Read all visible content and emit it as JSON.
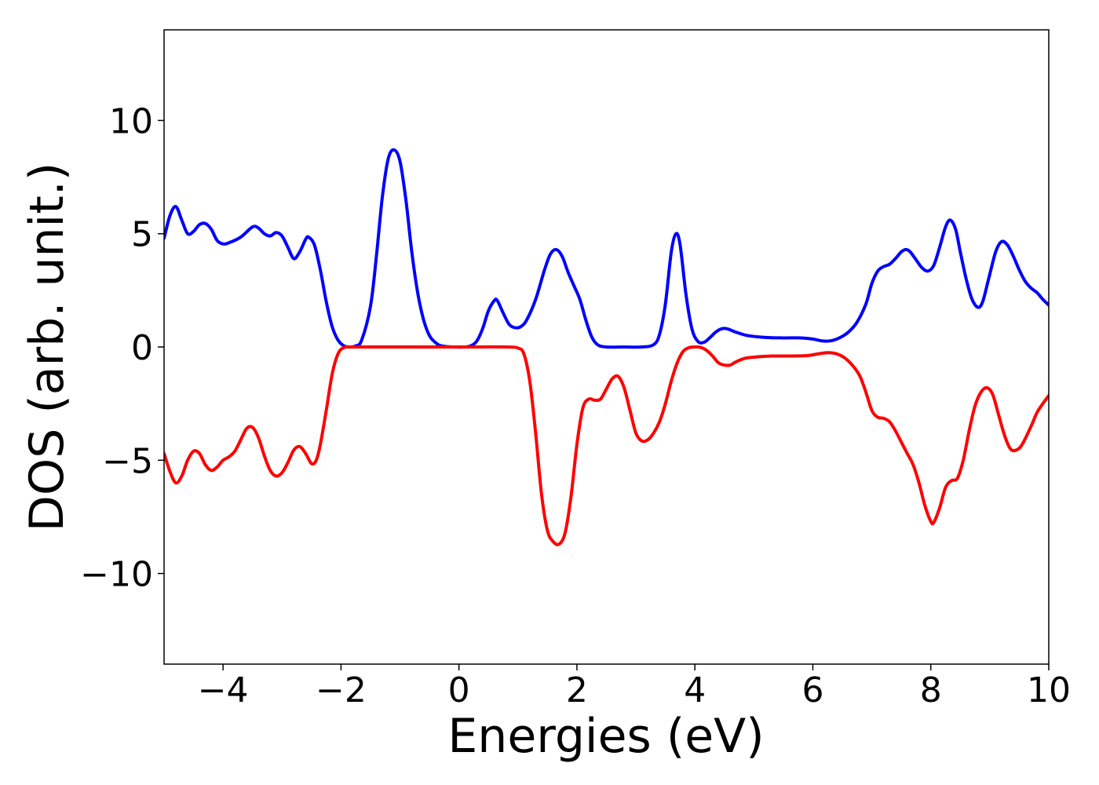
{
  "chart_data": {
    "type": "line",
    "title": "",
    "xlabel": "Energies (eV)",
    "ylabel": "DOS (arb. unit.)",
    "xlim": [
      -5,
      10
    ],
    "ylim": [
      -14,
      14
    ],
    "grid": false,
    "legend": "none",
    "x_ticks": [
      -4,
      -2,
      0,
      2,
      4,
      6,
      8,
      10
    ],
    "y_ticks": [
      -10,
      -5,
      0,
      5,
      10
    ],
    "x_tick_labels": [
      "−4",
      "−2",
      "0",
      "2",
      "4",
      "6",
      "8",
      "10"
    ],
    "y_tick_labels": [
      "−10",
      "−5",
      "0",
      "5",
      "10"
    ],
    "series": [
      {
        "color": "#0000ff",
        "points": [
          [
            -5.0,
            4.8
          ],
          [
            -4.9,
            5.8
          ],
          [
            -4.8,
            6.2
          ],
          [
            -4.7,
            5.6
          ],
          [
            -4.6,
            5.0
          ],
          [
            -4.5,
            5.1
          ],
          [
            -4.4,
            5.4
          ],
          [
            -4.3,
            5.45
          ],
          [
            -4.2,
            5.2
          ],
          [
            -4.1,
            4.7
          ],
          [
            -4.0,
            4.55
          ],
          [
            -3.9,
            4.6
          ],
          [
            -3.7,
            4.85
          ],
          [
            -3.5,
            5.3
          ],
          [
            -3.4,
            5.25
          ],
          [
            -3.3,
            5.0
          ],
          [
            -3.2,
            4.9
          ],
          [
            -3.1,
            5.05
          ],
          [
            -3.0,
            4.9
          ],
          [
            -2.9,
            4.4
          ],
          [
            -2.8,
            3.9
          ],
          [
            -2.7,
            4.2
          ],
          [
            -2.6,
            4.75
          ],
          [
            -2.55,
            4.85
          ],
          [
            -2.45,
            4.5
          ],
          [
            -2.35,
            3.4
          ],
          [
            -2.25,
            2.0
          ],
          [
            -2.15,
            0.9
          ],
          [
            -2.05,
            0.3
          ],
          [
            -1.95,
            0.05
          ],
          [
            -1.85,
            0.0
          ],
          [
            -1.75,
            0.05
          ],
          [
            -1.65,
            0.3
          ],
          [
            -1.5,
            1.8
          ],
          [
            -1.4,
            4.0
          ],
          [
            -1.3,
            6.6
          ],
          [
            -1.2,
            8.3
          ],
          [
            -1.1,
            8.7
          ],
          [
            -1.0,
            8.2
          ],
          [
            -0.9,
            6.5
          ],
          [
            -0.8,
            4.2
          ],
          [
            -0.7,
            2.4
          ],
          [
            -0.6,
            1.2
          ],
          [
            -0.5,
            0.5
          ],
          [
            -0.4,
            0.2
          ],
          [
            -0.3,
            0.05
          ],
          [
            -0.1,
            0.0
          ],
          [
            0.1,
            0.0
          ],
          [
            0.2,
            0.05
          ],
          [
            0.3,
            0.25
          ],
          [
            0.4,
            0.8
          ],
          [
            0.5,
            1.6
          ],
          [
            0.6,
            2.05
          ],
          [
            0.65,
            2.05
          ],
          [
            0.75,
            1.5
          ],
          [
            0.85,
            1.0
          ],
          [
            0.95,
            0.85
          ],
          [
            1.05,
            0.9
          ],
          [
            1.15,
            1.2
          ],
          [
            1.3,
            2.1
          ],
          [
            1.45,
            3.4
          ],
          [
            1.55,
            4.1
          ],
          [
            1.65,
            4.3
          ],
          [
            1.75,
            4.0
          ],
          [
            1.85,
            3.3
          ],
          [
            1.95,
            2.7
          ],
          [
            2.05,
            2.1
          ],
          [
            2.15,
            1.2
          ],
          [
            2.25,
            0.45
          ],
          [
            2.35,
            0.1
          ],
          [
            2.5,
            0.0
          ],
          [
            2.8,
            0.0
          ],
          [
            3.1,
            0.0
          ],
          [
            3.3,
            0.1
          ],
          [
            3.4,
            0.55
          ],
          [
            3.5,
            1.9
          ],
          [
            3.6,
            4.2
          ],
          [
            3.68,
            5.0
          ],
          [
            3.75,
            4.5
          ],
          [
            3.85,
            2.3
          ],
          [
            3.95,
            0.8
          ],
          [
            4.05,
            0.25
          ],
          [
            4.15,
            0.2
          ],
          [
            4.25,
            0.4
          ],
          [
            4.35,
            0.65
          ],
          [
            4.45,
            0.8
          ],
          [
            4.55,
            0.8
          ],
          [
            4.7,
            0.65
          ],
          [
            4.9,
            0.5
          ],
          [
            5.2,
            0.42
          ],
          [
            5.5,
            0.4
          ],
          [
            5.8,
            0.4
          ],
          [
            6.0,
            0.35
          ],
          [
            6.15,
            0.27
          ],
          [
            6.3,
            0.27
          ],
          [
            6.45,
            0.4
          ],
          [
            6.6,
            0.65
          ],
          [
            6.75,
            1.1
          ],
          [
            6.9,
            1.9
          ],
          [
            7.0,
            2.8
          ],
          [
            7.1,
            3.35
          ],
          [
            7.2,
            3.55
          ],
          [
            7.3,
            3.65
          ],
          [
            7.4,
            3.9
          ],
          [
            7.5,
            4.2
          ],
          [
            7.58,
            4.3
          ],
          [
            7.65,
            4.2
          ],
          [
            7.75,
            3.85
          ],
          [
            7.85,
            3.5
          ],
          [
            7.95,
            3.35
          ],
          [
            8.05,
            3.6
          ],
          [
            8.15,
            4.4
          ],
          [
            8.25,
            5.3
          ],
          [
            8.33,
            5.6
          ],
          [
            8.42,
            5.2
          ],
          [
            8.5,
            4.2
          ],
          [
            8.6,
            3.0
          ],
          [
            8.7,
            2.1
          ],
          [
            8.8,
            1.75
          ],
          [
            8.88,
            2.0
          ],
          [
            8.98,
            3.0
          ],
          [
            9.1,
            4.2
          ],
          [
            9.2,
            4.65
          ],
          [
            9.3,
            4.5
          ],
          [
            9.4,
            4.0
          ],
          [
            9.5,
            3.4
          ],
          [
            9.6,
            2.9
          ],
          [
            9.7,
            2.6
          ],
          [
            9.8,
            2.4
          ],
          [
            9.9,
            2.1
          ],
          [
            10.0,
            1.85
          ]
        ]
      },
      {
        "color": "#ff0000",
        "points": [
          [
            -5.0,
            -4.7
          ],
          [
            -4.9,
            -5.5
          ],
          [
            -4.8,
            -6.0
          ],
          [
            -4.7,
            -5.7
          ],
          [
            -4.6,
            -5.0
          ],
          [
            -4.5,
            -4.6
          ],
          [
            -4.4,
            -4.7
          ],
          [
            -4.3,
            -5.2
          ],
          [
            -4.2,
            -5.45
          ],
          [
            -4.1,
            -5.3
          ],
          [
            -4.0,
            -5.0
          ],
          [
            -3.9,
            -4.85
          ],
          [
            -3.8,
            -4.6
          ],
          [
            -3.7,
            -4.1
          ],
          [
            -3.6,
            -3.6
          ],
          [
            -3.5,
            -3.55
          ],
          [
            -3.4,
            -4.0
          ],
          [
            -3.3,
            -4.8
          ],
          [
            -3.2,
            -5.45
          ],
          [
            -3.1,
            -5.7
          ],
          [
            -3.0,
            -5.55
          ],
          [
            -2.9,
            -5.1
          ],
          [
            -2.8,
            -4.55
          ],
          [
            -2.7,
            -4.4
          ],
          [
            -2.6,
            -4.7
          ],
          [
            -2.5,
            -5.15
          ],
          [
            -2.42,
            -5.0
          ],
          [
            -2.35,
            -4.3
          ],
          [
            -2.25,
            -2.8
          ],
          [
            -2.15,
            -1.2
          ],
          [
            -2.05,
            -0.3
          ],
          [
            -1.95,
            -0.03
          ],
          [
            -1.8,
            0.0
          ],
          [
            -1.0,
            0.0
          ],
          [
            0.0,
            0.0
          ],
          [
            0.8,
            0.0
          ],
          [
            1.0,
            -0.05
          ],
          [
            1.1,
            -0.3
          ],
          [
            1.2,
            -1.5
          ],
          [
            1.3,
            -3.8
          ],
          [
            1.4,
            -6.5
          ],
          [
            1.5,
            -8.1
          ],
          [
            1.6,
            -8.6
          ],
          [
            1.7,
            -8.7
          ],
          [
            1.8,
            -8.2
          ],
          [
            1.9,
            -6.6
          ],
          [
            2.0,
            -4.3
          ],
          [
            2.1,
            -2.7
          ],
          [
            2.2,
            -2.3
          ],
          [
            2.3,
            -2.35
          ],
          [
            2.4,
            -2.3
          ],
          [
            2.5,
            -1.85
          ],
          [
            2.6,
            -1.4
          ],
          [
            2.7,
            -1.3
          ],
          [
            2.8,
            -1.8
          ],
          [
            2.9,
            -2.8
          ],
          [
            3.0,
            -3.8
          ],
          [
            3.1,
            -4.15
          ],
          [
            3.2,
            -4.1
          ],
          [
            3.3,
            -3.8
          ],
          [
            3.4,
            -3.3
          ],
          [
            3.5,
            -2.5
          ],
          [
            3.6,
            -1.5
          ],
          [
            3.7,
            -0.7
          ],
          [
            3.8,
            -0.2
          ],
          [
            3.9,
            -0.03
          ],
          [
            4.0,
            -0.0
          ],
          [
            4.1,
            -0.02
          ],
          [
            4.2,
            -0.15
          ],
          [
            4.3,
            -0.4
          ],
          [
            4.4,
            -0.7
          ],
          [
            4.5,
            -0.8
          ],
          [
            4.6,
            -0.8
          ],
          [
            4.7,
            -0.65
          ],
          [
            4.85,
            -0.5
          ],
          [
            5.0,
            -0.45
          ],
          [
            5.3,
            -0.4
          ],
          [
            5.6,
            -0.4
          ],
          [
            5.9,
            -0.38
          ],
          [
            6.1,
            -0.3
          ],
          [
            6.25,
            -0.25
          ],
          [
            6.4,
            -0.3
          ],
          [
            6.55,
            -0.5
          ],
          [
            6.7,
            -0.9
          ],
          [
            6.8,
            -1.3
          ],
          [
            6.9,
            -2.0
          ],
          [
            7.0,
            -2.8
          ],
          [
            7.1,
            -3.1
          ],
          [
            7.2,
            -3.15
          ],
          [
            7.3,
            -3.3
          ],
          [
            7.4,
            -3.7
          ],
          [
            7.5,
            -4.2
          ],
          [
            7.6,
            -4.7
          ],
          [
            7.7,
            -5.2
          ],
          [
            7.8,
            -6.0
          ],
          [
            7.9,
            -7.0
          ],
          [
            8.0,
            -7.7
          ],
          [
            8.05,
            -7.75
          ],
          [
            8.15,
            -7.1
          ],
          [
            8.25,
            -6.2
          ],
          [
            8.35,
            -5.9
          ],
          [
            8.45,
            -5.8
          ],
          [
            8.55,
            -5.0
          ],
          [
            8.65,
            -3.7
          ],
          [
            8.75,
            -2.6
          ],
          [
            8.85,
            -2.0
          ],
          [
            8.95,
            -1.8
          ],
          [
            9.05,
            -2.1
          ],
          [
            9.15,
            -3.0
          ],
          [
            9.25,
            -3.9
          ],
          [
            9.35,
            -4.5
          ],
          [
            9.45,
            -4.55
          ],
          [
            9.55,
            -4.3
          ],
          [
            9.7,
            -3.5
          ],
          [
            9.8,
            -2.9
          ],
          [
            9.9,
            -2.5
          ],
          [
            10.0,
            -2.15
          ]
        ]
      }
    ]
  }
}
